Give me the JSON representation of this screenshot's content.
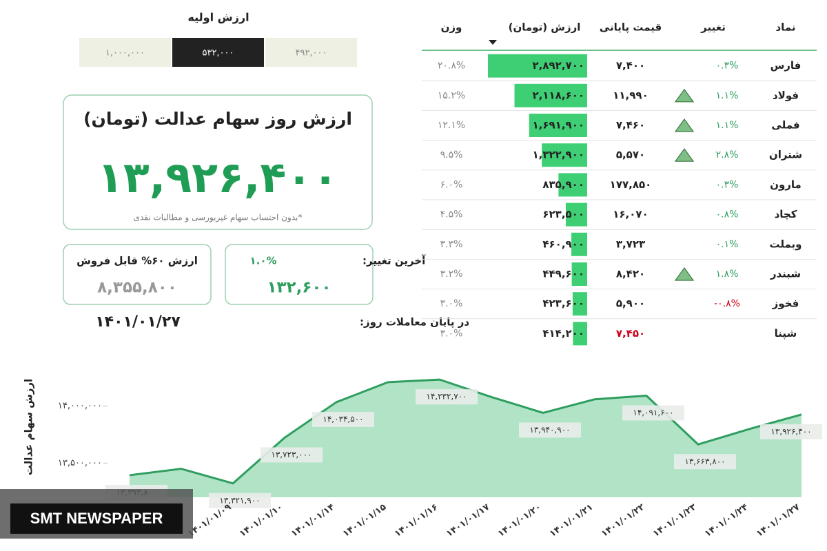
{
  "initial_value": {
    "title": "ارزش اولیه",
    "options": [
      "۱,۰۰۰,۰۰۰",
      "۵۳۲,۰۰۰",
      "۴۹۲,۰۰۰"
    ],
    "selected": 1
  },
  "card": {
    "title": "ارزش روز سهام عدالت (تومان)",
    "value": "۱۳,۹۲۶,۴۰۰",
    "note": "*بدون احتساب سهام غیربورسی و مطالبات نقدی"
  },
  "last_change": {
    "label": "آخرین تغییر:",
    "percent": "۱.۰%",
    "value": "۱۳۲,۶۰۰"
  },
  "sellable": {
    "label": "ارزش ۶۰% قابل فروش",
    "value": "۸,۳۵۵,۸۰۰"
  },
  "closing": {
    "label": "در پایان معاملات روز:",
    "date": "۱۴۰۱/۰۱/۲۷"
  },
  "table": {
    "columns": [
      "نماد",
      "تغییر",
      "قیمت پایانی",
      "ارزش (تومان)",
      "وزن"
    ],
    "bar_color": "#3ecf74",
    "rows": [
      {
        "symbol": "فارس",
        "change": "۰.۳%",
        "price": "۷,۴۰۰",
        "value": {
          "value": 2892700,
          "label": "۲,۸۹۲,۷۰۰"
        },
        "weight": "۲۰.۸%"
      },
      {
        "symbol": "فولاد",
        "change": "۱.۱%",
        "arrow": true,
        "price": "۱۱,۹۹۰",
        "value": {
          "value": 2118600,
          "label": "۲,۱۱۸,۶۰۰"
        },
        "weight": "۱۵.۲%"
      },
      {
        "symbol": "فملی",
        "change": "۱.۱%",
        "arrow": true,
        "price": "۷,۴۶۰",
        "value": {
          "value": 1691900,
          "label": "۱,۶۹۱,۹۰۰"
        },
        "weight": "۱۲.۱%"
      },
      {
        "symbol": "شتران",
        "change": "۲.۸%",
        "arrow": true,
        "price": "۵,۵۷۰",
        "value": {
          "value": 1322900,
          "label": "۱,۳۲۲,۹۰۰"
        },
        "weight": "۹.۵%"
      },
      {
        "symbol": "مارون",
        "change": "۰.۳%",
        "price": "۱۷۷,۸۵۰",
        "value": {
          "value": 835900,
          "label": "۸۳۵,۹۰۰"
        },
        "weight": "۶.۰%"
      },
      {
        "symbol": "کچاد",
        "change": "۰.۸%",
        "price": "۱۶,۰۷۰",
        "value": {
          "value": 623500,
          "label": "۶۲۳,۵۰۰"
        },
        "weight": "۴.۵%"
      },
      {
        "symbol": "وبملت",
        "change": "۰.۱%",
        "price": "۳,۷۲۳",
        "value": {
          "value": 460900,
          "label": "۴۶۰,۹۰۰"
        },
        "weight": "۳.۳%"
      },
      {
        "symbol": "شبندر",
        "change": "۱.۸%",
        "arrow": true,
        "price": "۸,۴۲۰",
        "value": {
          "value": 449600,
          "label": "۴۴۹,۶۰۰"
        },
        "weight": "۳.۲%"
      },
      {
        "symbol": "فخوز",
        "change": "-۰.۸%",
        "change_color": "#d0021b",
        "price": "۵,۹۰۰",
        "value": {
          "value": 423600,
          "label": "۴۲۳,۶۰۰"
        },
        "weight": "۳.۰%"
      },
      {
        "symbol": "شپنا",
        "price": "۷,۴۵۰",
        "price_color": "#d0021b",
        "value": {
          "value": 414200,
          "label": "۴۱۴,۲۰۰"
        },
        "weight": "۳.۰%"
      }
    ]
  },
  "chart_data": {
    "type": "area",
    "y_label": "ارزش سهام عدالت",
    "categories": [
      null,
      null,
      "۱۴۰۱/۰۱/۰۹",
      "۱۴۰۱/۰۱/۱۰",
      "۱۴۰۱/۰۱/۱۴",
      "۱۴۰۱/۰۱/۱۵",
      "۱۴۰۱/۰۱/۱۶",
      "۱۴۰۱/۰۱/۱۷",
      "۱۴۰۱/۰۱/۲۰",
      "۱۴۰۱/۰۱/۲۱",
      "۱۴۰۱/۰۱/۲۲",
      "۱۴۰۱/۰۱/۲۳",
      "۱۴۰۱/۰۱/۲۴",
      "۱۴۰۱/۰۱/۲۷"
    ],
    "values": [
      13393800,
      13450000,
      13321900,
      13723000,
      14034500,
      14210000,
      14232700,
      14080000,
      13940900,
      14060000,
      14091600,
      13663800,
      13800000,
      13926400
    ],
    "value_labels": [
      "۱۳,۳۹۳,۸۰۰",
      null,
      "۱۳,۳۲۱,۹۰۰",
      "۱۳,۷۲۳,۰۰۰",
      "۱۴,۰۳۴,۵۰۰",
      null,
      "۱۴,۲۳۲,۷۰۰",
      null,
      "۱۳,۹۴۰,۹۰۰",
      null,
      "۱۴,۰۹۱,۶۰۰",
      "۱۳,۶۶۳,۸۰۰",
      null,
      "۱۳,۹۲۶,۴۰۰"
    ],
    "color": "#2e9e5e",
    "fill": "#a9e0c1",
    "ylim": [
      13200000,
      14300000
    ],
    "yticks": [
      {
        "value": 13500000,
        "label": "۱۳,۵۰۰,۰۰۰"
      },
      {
        "value": 14000000,
        "label": "۱۴,۰۰۰,۰۰۰"
      }
    ]
  },
  "watermark": "SMT NEWSPAPER"
}
